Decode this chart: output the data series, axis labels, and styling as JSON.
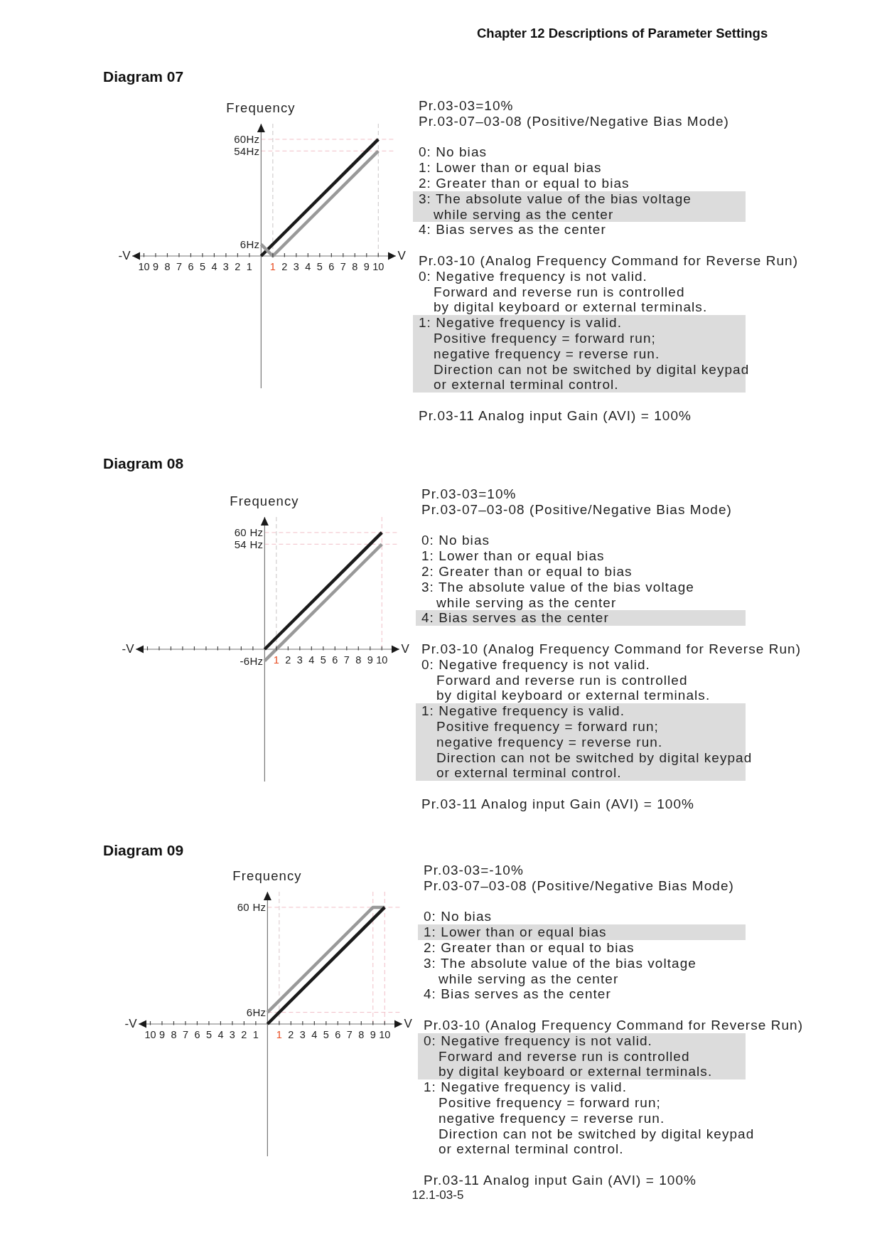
{
  "chart_data": [
    {
      "type": "line",
      "title": "Diagram 07",
      "xlabel": "V",
      "ylabel": "Frequency",
      "xlim": [
        -11,
        11.5
      ],
      "ylim": [
        -68,
        68
      ],
      "xticks": [
        {
          "value": -10,
          "label": "10"
        },
        {
          "value": -9,
          "label": "9"
        },
        {
          "value": -8,
          "label": "8"
        },
        {
          "value": -7,
          "label": "7"
        },
        {
          "value": -6,
          "label": "6"
        },
        {
          "value": -5,
          "label": "5"
        },
        {
          "value": -4,
          "label": "4"
        },
        {
          "value": -3,
          "label": "3"
        },
        {
          "value": -2,
          "label": "2"
        },
        {
          "value": -1,
          "label": "1"
        },
        1,
        2,
        3,
        4,
        5,
        6,
        7,
        8,
        9,
        10
      ],
      "yticks": [
        {
          "value": 6,
          "label": "6Hz"
        },
        {
          "value": 54,
          "label": "54Hz"
        },
        {
          "value": 60,
          "label": "60Hz"
        }
      ],
      "marker": "none",
      "line_style": "solid",
      "series": [
        {
          "color": "#1a1a1a",
          "x": [
            0,
            10
          ],
          "values": [
            0,
            60
          ]
        },
        {
          "color": "#999999",
          "x": [
            0,
            1,
            10
          ],
          "values": [
            6,
            0,
            54
          ]
        }
      ],
      "ref_lines": [
        {
          "axis": "y",
          "value": 60,
          "color": "#f1bfc7",
          "line_style": "dashed"
        },
        {
          "axis": "y",
          "value": 54,
          "color": "#f1bfc7",
          "line_style": "dashed"
        },
        {
          "axis": "x",
          "value": 1,
          "color": "#c9c5c6",
          "line_style": "dashed"
        },
        {
          "axis": "x",
          "value": 10,
          "color": "#c9c5c6",
          "line_style": "dashed"
        }
      ],
      "annotations": [
        "-V",
        "Pr.03-03=10%",
        "Pr.03-07–03-08 (Positive/Negative Bias Mode)",
        "0: No bias",
        "1: Lower than or equal bias",
        "2: Greater than or equal to bias",
        "3: The absolute value of the bias voltage\nwhile serving as the center",
        "4: Bias serves as the center",
        "Pr.03-10 (Analog Frequency Command for Reverse Run)",
        "0: Negative frequency is not valid.\nForward and reverse run is controlled\nby digital keyboard or external terminals.",
        "1: Negative frequency is valid.\nPositive frequency = forward run;\nnegative frequency = reverse run.\nDirection can not be switched by digital keypad\nor external terminal control.",
        "Pr.03-11 Analog input Gain (AVI) = 100%",
        "Chapter 12 Descriptions of Parameter Settings"
      ]
    },
    {
      "type": "line",
      "title": "Diagram 08",
      "xlabel": "V",
      "ylabel": "Frequency",
      "xlim": [
        -11,
        11.5
      ],
      "ylim": [
        -68,
        68
      ],
      "xticks": [
        {
          "value": -10,
          "label": null
        },
        {
          "value": -9,
          "label": null
        },
        {
          "value": -8,
          "label": null
        },
        {
          "value": -7,
          "label": null
        },
        {
          "value": -6,
          "label": null
        },
        {
          "value": -5,
          "label": null
        },
        {
          "value": -4,
          "label": null
        },
        {
          "value": -3,
          "label": null
        },
        {
          "value": -2,
          "label": null
        },
        {
          "value": -1,
          "label": null
        },
        1,
        2,
        3,
        4,
        5,
        6,
        7,
        8,
        9,
        10
      ],
      "yticks": [
        {
          "value": -6,
          "label": "-6Hz"
        },
        {
          "value": 54,
          "label": "54 Hz"
        },
        {
          "value": 60,
          "label": "60 Hz"
        }
      ],
      "marker": "none",
      "line_style": "solid",
      "series": [
        {
          "color": "#1a1a1a",
          "x": [
            0,
            10
          ],
          "values": [
            0,
            60
          ]
        },
        {
          "color": "#999999",
          "x": [
            0,
            10
          ],
          "values": [
            -6,
            54
          ]
        }
      ],
      "ref_lines": [
        {
          "axis": "y",
          "value": 60,
          "color": "#f1bfc7",
          "line_style": "dashed"
        },
        {
          "axis": "y",
          "value": 54,
          "color": "#f1bfc7",
          "line_style": "dashed"
        },
        {
          "axis": "x",
          "value": 1,
          "color": "#c9c5c6",
          "line_style": "dashed"
        },
        {
          "axis": "x",
          "value": 10,
          "color": "#f1bfc7",
          "line_style": "dashed"
        }
      ],
      "annotations": [
        "-V",
        "Pr.03-03=10%",
        "Pr.03-07–03-08 (Positive/Negative Bias Mode)",
        "0: No bias",
        "1: Lower than or equal bias",
        "2: Greater than or equal to bias",
        "3: The absolute value of the bias voltage\nwhile serving as the center",
        "4: Bias serves as the center",
        "Pr.03-10 (Analog Frequency Command for Reverse Run)",
        "0: Negative frequency is not valid.\nForward and reverse run is controlled\nby digital keyboard or external terminals.",
        "1: Negative frequency is valid.\nPositive frequency = forward run;\nnegative frequency = reverse run.\nDirection can not be switched by digital keypad\nor external terminal control.",
        "Pr.03-11 Analog input Gain (AVI) = 100%"
      ]
    },
    {
      "type": "line",
      "title": "Diagram 09",
      "xlabel": "V",
      "ylabel": "Frequency",
      "xlim": [
        -11,
        11.5
      ],
      "ylim": [
        -68,
        68
      ],
      "xticks": [
        {
          "value": -10,
          "label": "10"
        },
        {
          "value": -9,
          "label": "9"
        },
        {
          "value": -8,
          "label": "8"
        },
        {
          "value": -7,
          "label": "7"
        },
        {
          "value": -6,
          "label": "6"
        },
        {
          "value": -5,
          "label": "5"
        },
        {
          "value": -4,
          "label": "4"
        },
        {
          "value": -3,
          "label": "3"
        },
        {
          "value": -2,
          "label": "2"
        },
        {
          "value": -1,
          "label": "1"
        },
        1,
        2,
        3,
        4,
        5,
        6,
        7,
        8,
        9,
        10
      ],
      "yticks": [
        {
          "value": 6,
          "label": "6Hz"
        },
        {
          "value": 60,
          "label": "60 Hz"
        }
      ],
      "marker": "none",
      "line_style": "solid",
      "series": [
        {
          "color": "#999999",
          "x": [
            0,
            9,
            10
          ],
          "values": [
            6,
            60,
            60
          ]
        },
        {
          "color": "#1a1a1a",
          "x": [
            0,
            10
          ],
          "values": [
            0,
            60
          ]
        }
      ],
      "ref_lines": [
        {
          "axis": "y",
          "value": 60,
          "color": "#f1bfc7",
          "line_style": "dashed"
        },
        {
          "axis": "y",
          "value": 6,
          "color": "#f1bfc7",
          "line_style": "dashed"
        },
        {
          "axis": "x",
          "value": 1,
          "color": "#d9c5c9",
          "line_style": "dashed"
        },
        {
          "axis": "x",
          "value": 9,
          "color": "#f1bfc7",
          "line_style": "dashed"
        },
        {
          "axis": "x",
          "value": 10,
          "color": "#f1bfc7",
          "line_style": "dashed"
        }
      ],
      "annotations": [
        "-V",
        "Pr.03-03=-10%",
        "Pr.03-07–03-08 (Positive/Negative Bias Mode)",
        "0: No bias",
        "1: Lower than or equal bias",
        "2: Greater than or equal to bias",
        "3: The absolute value of the bias voltage\nwhile serving as the center",
        "4: Bias serves as the center",
        "Pr.03-10 (Analog Frequency Command for Reverse Run)",
        "0: Negative frequency is not valid.\nForward and reverse run is controlled\nby digital keyboard or external terminals.",
        "1: Negative frequency is valid.\nPositive frequency = forward run;\nnegative frequency = reverse run.\nDirection can not be switched by digital keypad\nor external terminal control.",
        "Pr.03-11 Analog input Gain (AVI) = 100%",
        "12.1-03-5"
      ]
    }
  ]
}
